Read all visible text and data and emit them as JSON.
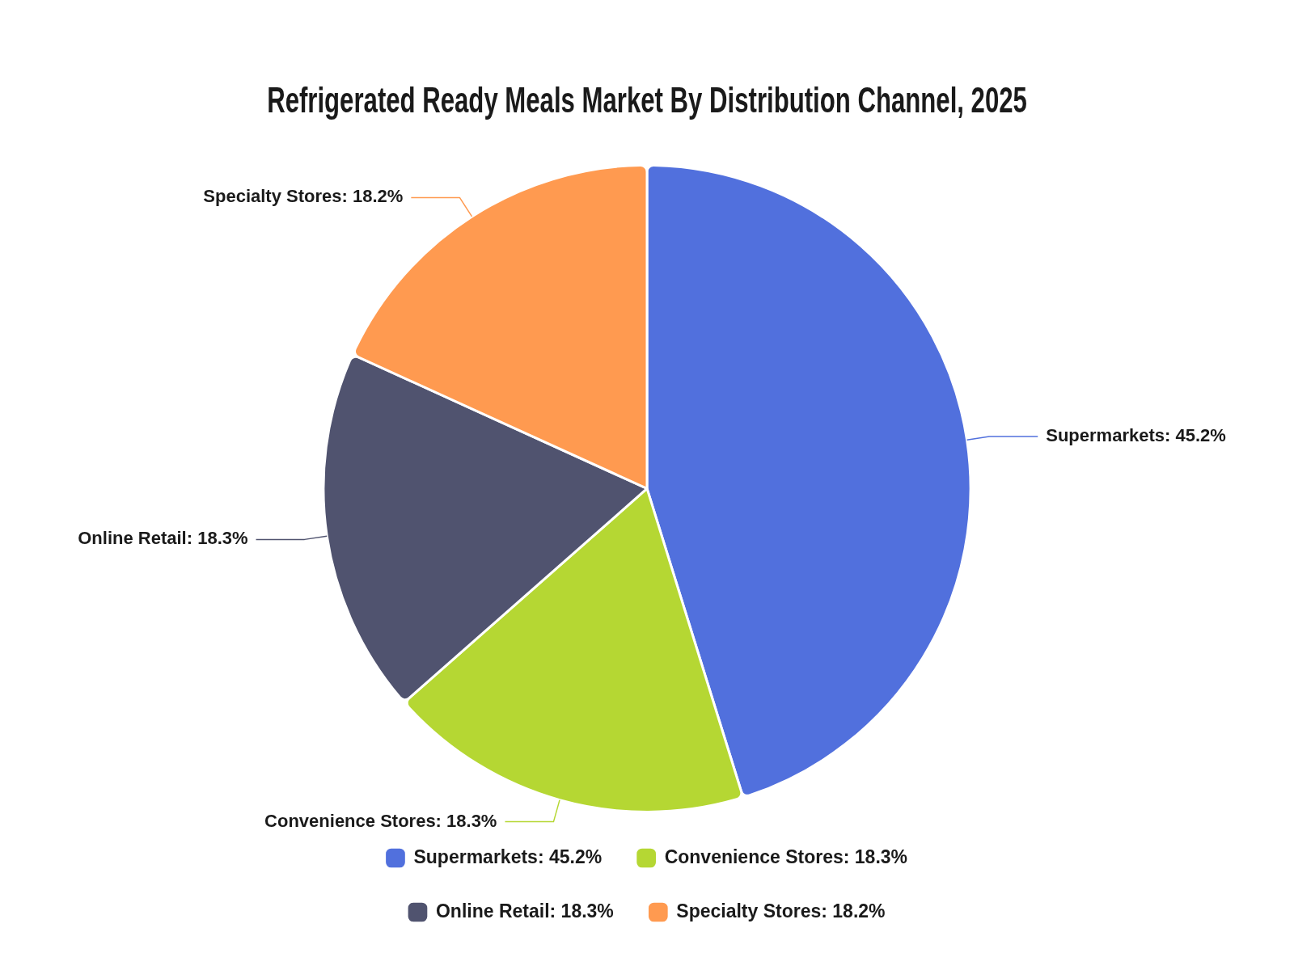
{
  "chart_data": {
    "type": "pie",
    "title": "Refrigerated Ready Meals Market By Distribution Channel, 2025",
    "categories": [
      "Supermarkets: 45.2%",
      "Convenience Stores: 18.3%",
      "Online Retail: 18.3%",
      "Specialty Stores: 18.2%"
    ],
    "values": [
      45.2,
      18.3,
      18.3,
      18.2
    ],
    "colors": [
      "#5170dd",
      "#b5d733",
      "#50536f",
      "#ff9a50"
    ],
    "legend": "bottom"
  }
}
